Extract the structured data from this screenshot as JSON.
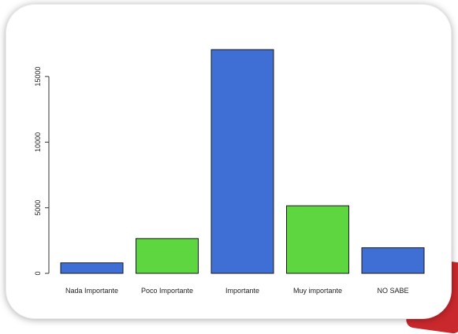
{
  "chart_data": {
    "type": "bar",
    "categories": [
      "Nada Importante",
      "Poco Importante",
      "Importante",
      "Muy importante",
      "NO SABE"
    ],
    "values": [
      800,
      2650,
      17050,
      5150,
      1950
    ],
    "bar_colors": [
      "#3f6fd4",
      "#5ed63f",
      "#3f6fd4",
      "#5ed63f",
      "#3f6fd4"
    ],
    "bar_outline": "#1a1a1a",
    "yticks": [
      0,
      5000,
      10000,
      15000
    ],
    "ylim": [
      0,
      17600
    ],
    "title": "",
    "xlabel": "",
    "ylabel": "",
    "grid": false
  }
}
